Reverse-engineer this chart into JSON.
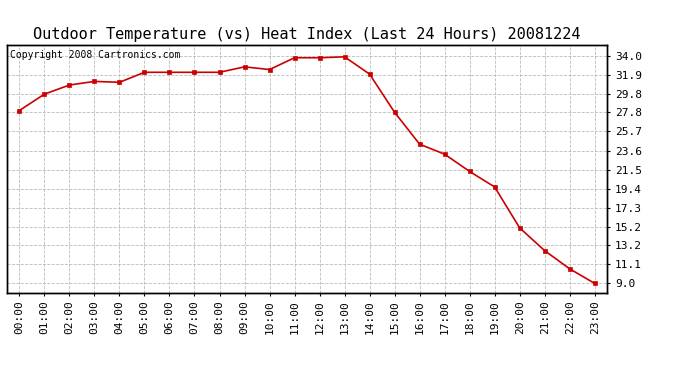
{
  "title": "Outdoor Temperature (vs) Heat Index (Last 24 Hours) 20081224",
  "copyright_text": "Copyright 2008 Cartronics.com",
  "x_labels": [
    "00:00",
    "01:00",
    "02:00",
    "03:00",
    "04:00",
    "05:00",
    "06:00",
    "07:00",
    "08:00",
    "09:00",
    "10:00",
    "11:00",
    "12:00",
    "13:00",
    "14:00",
    "15:00",
    "16:00",
    "17:00",
    "18:00",
    "19:00",
    "20:00",
    "21:00",
    "22:00",
    "23:00"
  ],
  "y_values": [
    28.0,
    29.8,
    30.8,
    31.2,
    31.1,
    32.2,
    32.2,
    32.2,
    32.2,
    32.8,
    32.5,
    33.8,
    33.8,
    33.9,
    32.0,
    27.8,
    24.3,
    23.2,
    21.3,
    19.6,
    15.1,
    12.6,
    10.6,
    9.0
  ],
  "y_ticks": [
    9.0,
    11.1,
    13.2,
    15.2,
    17.3,
    19.4,
    21.5,
    23.6,
    25.7,
    27.8,
    29.8,
    31.9,
    34.0
  ],
  "ylim": [
    8.0,
    35.2
  ],
  "line_color": "#cc0000",
  "marker_color": "#cc0000",
  "bg_color": "#ffffff",
  "plot_bg_color": "#ffffff",
  "grid_color": "#bbbbbb",
  "title_fontsize": 11,
  "copyright_fontsize": 7,
  "tick_fontsize": 8
}
